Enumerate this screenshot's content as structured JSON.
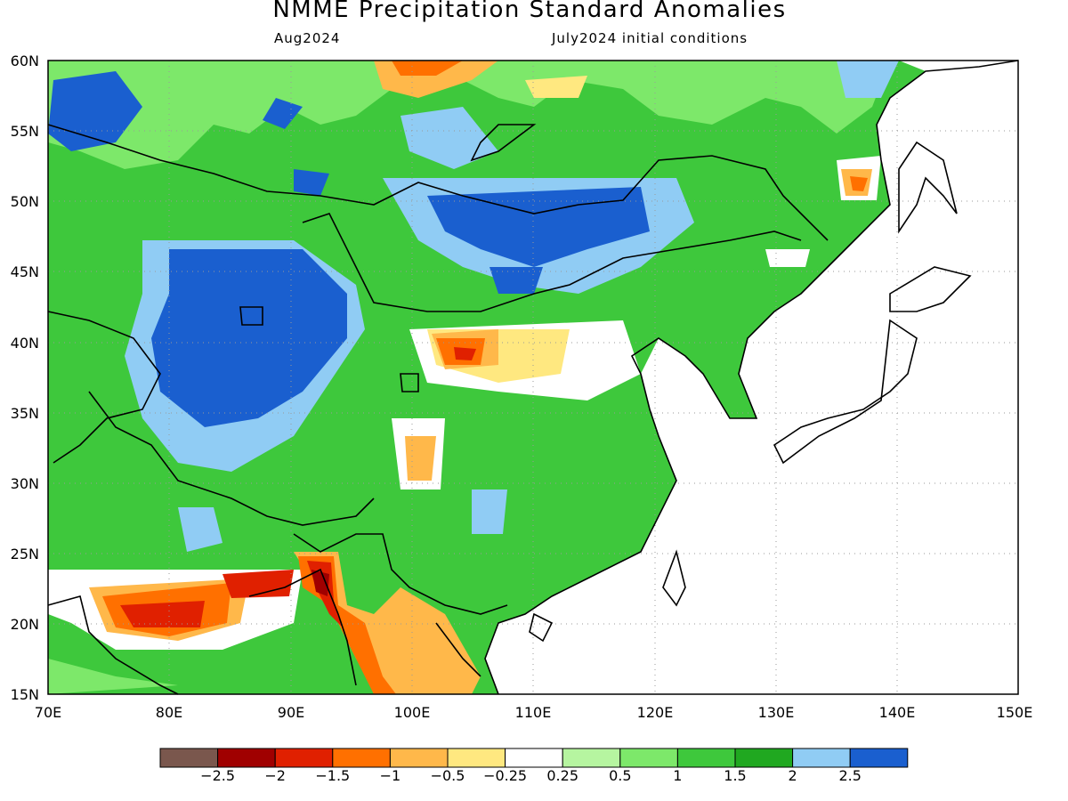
{
  "title": "NMME Precipitation Standard Anomalies",
  "subtitle_left": "Aug2024",
  "subtitle_right": "July2024 initial conditions",
  "axes": {
    "lon_ticks": [
      "70E",
      "80E",
      "90E",
      "100E",
      "110E",
      "120E",
      "130E",
      "140E",
      "150E"
    ],
    "lat_ticks": [
      "60N",
      "55N",
      "50N",
      "45N",
      "40N",
      "35N",
      "30N",
      "25N",
      "20N",
      "15N"
    ]
  },
  "map_extent": {
    "lon": [
      70,
      150
    ],
    "lat": [
      15,
      60
    ]
  },
  "colorbar": {
    "colors": [
      "#7a574d",
      "#a00000",
      "#e02000",
      "#ff7000",
      "#ffb84a",
      "#ffe880",
      "#ffffff",
      "#b6f5a0",
      "#7de86a",
      "#3ec83c",
      "#20a820",
      "#90ccf4",
      "#1a5fcf"
    ],
    "labels": [
      "−2.5",
      "−2",
      "−1.5",
      "−1",
      "−0.5",
      "−0.25",
      "0.25",
      "0.5",
      "1",
      "1.5",
      "2",
      "2.5"
    ]
  },
  "anomaly_regions": [
    {
      "name": "tarim-basin",
      "level": 2.5
    },
    {
      "name": "mongolia",
      "level": 2.5
    },
    {
      "name": "siberia-west",
      "level": 2.5
    },
    {
      "name": "inner-mongolia",
      "level": -1
    },
    {
      "name": "sichuan",
      "level": -0.5
    },
    {
      "name": "northern-india",
      "level": -1.5
    },
    {
      "name": "bangladesh-myanmar",
      "level": -2
    },
    {
      "name": "indochina",
      "level": -0.5
    },
    {
      "name": "amur",
      "level": -0.5
    }
  ]
}
